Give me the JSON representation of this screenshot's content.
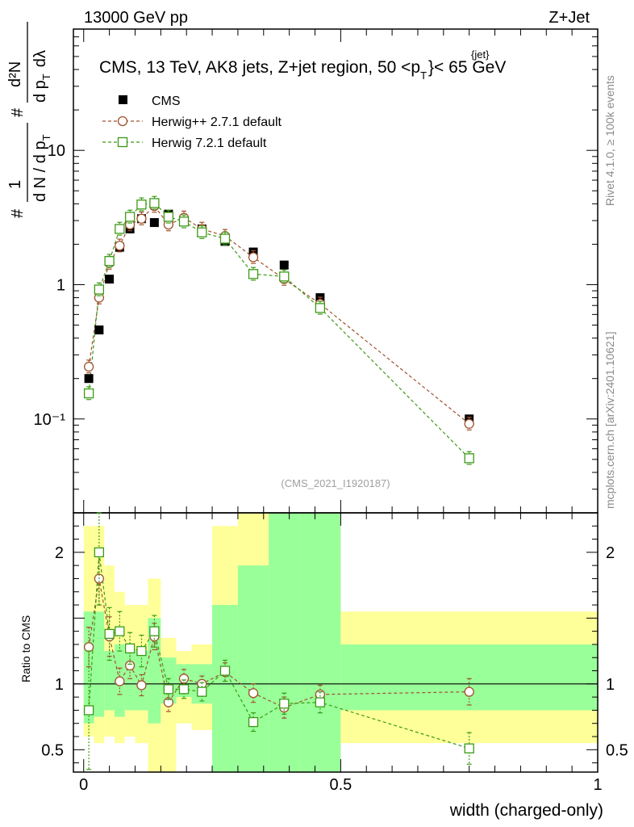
{
  "header": {
    "left": "13000 GeV pp",
    "right": "Z+Jet"
  },
  "title": {
    "main": "CMS, 13 TeV, AK8 jets, Z+jet region, 50 <p",
    "sup": "{jet}",
    "sub": "T",
    "tail": "}< 65 GeV"
  },
  "side_labels": {
    "top": "Rivet 4.1.0, ≥ 100k events",
    "bottom": "mcplots.cern.ch [arXiv:2401.10621]"
  },
  "watermark": "(CMS_2021_I1920187)",
  "y_label_parts": {
    "hash": "#",
    "one": "1",
    "dn": "d N / d p",
    "t": "T",
    "d2n": "d²N",
    "dpt": "d p",
    "dlambda": "dλ"
  },
  "ratio_ylabel": "Ratio to CMS",
  "xlabel": "width (charged-only)",
  "colors": {
    "data": "#000000",
    "herwigpp": "#a0522d",
    "herwig7": "#3a9a15",
    "band_inner": "#99ff99",
    "band_outer": "#ffff99"
  },
  "chart_data": {
    "type": "scatter",
    "main": {
      "yscale": "log",
      "ylim": [
        0.02,
        80
      ],
      "xlim": [
        -0.02,
        1.0
      ],
      "y_ticks": [
        {
          "v": 0.1,
          "label": "10⁻¹"
        },
        {
          "v": 1,
          "label": "1"
        },
        {
          "v": 10,
          "label": "10"
        }
      ]
    },
    "ratio": {
      "ylim": [
        0.33,
        2.3
      ],
      "y_ticks": [
        {
          "v": 0.5,
          "label": "0.5"
        },
        {
          "v": 1,
          "label": "1"
        },
        {
          "v": 2,
          "label": "2"
        }
      ],
      "x_ticks": [
        {
          "v": 0,
          "label": "0"
        },
        {
          "v": 0.5,
          "label": "0.5"
        },
        {
          "v": 1,
          "label": "1"
        }
      ]
    },
    "bins": [
      [
        0,
        0.02
      ],
      [
        0.02,
        0.04
      ],
      [
        0.04,
        0.06
      ],
      [
        0.06,
        0.08
      ],
      [
        0.08,
        0.1
      ],
      [
        0.1,
        0.125
      ],
      [
        0.125,
        0.15
      ],
      [
        0.15,
        0.18
      ],
      [
        0.18,
        0.21
      ],
      [
        0.21,
        0.25
      ],
      [
        0.25,
        0.3
      ],
      [
        0.3,
        0.36
      ],
      [
        0.36,
        0.42
      ],
      [
        0.42,
        0.5
      ],
      [
        0.5,
        1.0
      ]
    ],
    "band_inner": [
      [
        0.7,
        1.55
      ],
      [
        0.75,
        1.55
      ],
      [
        0.8,
        1.25
      ],
      [
        0.75,
        1.3
      ],
      [
        0.8,
        1.25
      ],
      [
        0.8,
        1.25
      ],
      [
        0.7,
        1.5
      ],
      [
        0.85,
        1.2
      ],
      [
        0.9,
        1.15
      ],
      [
        0.85,
        1.15
      ],
      [
        0.33,
        1.6
      ],
      [
        0.33,
        1.9
      ],
      [
        0.33,
        2.3
      ],
      [
        0.33,
        2.3
      ],
      [
        0.8,
        1.3
      ]
    ],
    "band_outer": [
      [
        0.6,
        2.2
      ],
      [
        0.55,
        2.2
      ],
      [
        0.6,
        1.9
      ],
      [
        0.55,
        1.7
      ],
      [
        0.6,
        1.6
      ],
      [
        0.55,
        1.6
      ],
      [
        0.33,
        1.8
      ],
      [
        0.33,
        1.35
      ],
      [
        0.7,
        1.25
      ],
      [
        0.65,
        1.3
      ],
      [
        0.33,
        2.2
      ],
      [
        0.36,
        2.3
      ],
      [
        0.36,
        2.3
      ],
      [
        0.33,
        2.3
      ],
      [
        0.55,
        1.55
      ]
    ],
    "series": [
      {
        "name": "CMS",
        "marker": "filled-square",
        "x": [
          0.01,
          0.03,
          0.05,
          0.07,
          0.09,
          0.1125,
          0.1375,
          0.165,
          0.195,
          0.23,
          0.275,
          0.33,
          0.39,
          0.46,
          0.75
        ],
        "y": [
          0.2,
          0.46,
          1.1,
          1.9,
          2.6,
          3.1,
          2.9,
          3.35,
          3.05,
          2.6,
          2.1,
          1.75,
          1.4,
          0.8,
          0.1
        ]
      },
      {
        "name": "Herwig++ 2.7.1 default",
        "marker": "open-circle",
        "x": [
          0.01,
          0.03,
          0.05,
          0.07,
          0.09,
          0.1125,
          0.1375,
          0.165,
          0.195,
          0.23,
          0.275,
          0.33,
          0.39,
          0.46,
          0.75
        ],
        "y": [
          0.245,
          0.8,
          1.45,
          1.95,
          2.8,
          3.1,
          3.85,
          2.8,
          3.15,
          2.6,
          2.3,
          1.6,
          1.1,
          0.72,
          0.092
        ],
        "ratio": [
          1.28,
          1.8,
          1.36,
          1.02,
          1.14,
          0.99,
          1.36,
          0.86,
          1.04,
          1.0,
          1.09,
          0.93,
          0.82,
          0.92,
          0.94
        ],
        "ratio_err": [
          0.15,
          0.2,
          0.15,
          0.1,
          0.1,
          0.08,
          0.1,
          0.07,
          0.07,
          0.06,
          0.07,
          0.07,
          0.08,
          0.07,
          0.1
        ]
      },
      {
        "name": "Herwig 7.2.1 default",
        "marker": "open-square",
        "x": [
          0.01,
          0.03,
          0.05,
          0.07,
          0.09,
          0.1125,
          0.1375,
          0.165,
          0.195,
          0.23,
          0.275,
          0.33,
          0.39,
          0.46,
          0.75
        ],
        "y": [
          0.155,
          0.92,
          1.5,
          2.6,
          3.2,
          3.95,
          4.05,
          3.2,
          2.95,
          2.45,
          2.2,
          1.2,
          1.15,
          0.67,
          0.051
        ],
        "ratio": [
          0.8,
          2.0,
          1.38,
          1.4,
          1.27,
          1.25,
          1.4,
          0.96,
          0.96,
          0.94,
          1.1,
          0.71,
          0.85,
          0.86,
          0.51
        ],
        "ratio_err": [
          0.45,
          0.4,
          0.2,
          0.15,
          0.12,
          0.12,
          0.12,
          0.08,
          0.07,
          0.07,
          0.08,
          0.07,
          0.08,
          0.08,
          0.12
        ]
      }
    ]
  }
}
